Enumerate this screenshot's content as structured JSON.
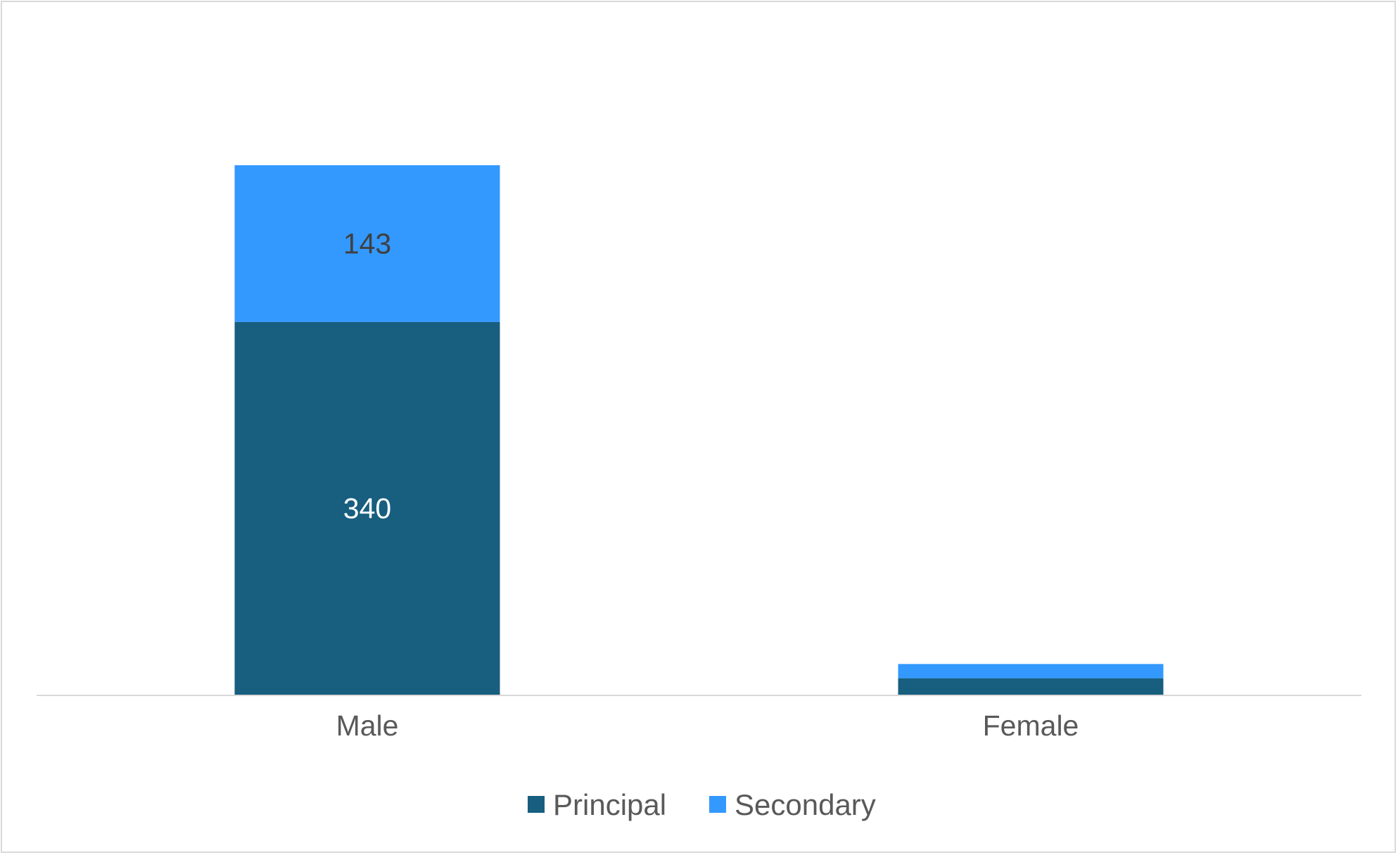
{
  "chart_data": {
    "type": "bar",
    "stacked": true,
    "title": "",
    "xlabel": "",
    "ylabel": "",
    "categories": [
      "Male",
      "Female"
    ],
    "series": [
      {
        "name": "Principal",
        "values": [
          340,
          15
        ],
        "data_labels": [
          "340",
          ""
        ],
        "color": "#175e7f",
        "label_color": "#ffffff"
      },
      {
        "name": "Secondary",
        "values": [
          143,
          13
        ],
        "data_labels": [
          "143",
          ""
        ],
        "color": "#3399ff",
        "label_color": "#404040"
      }
    ],
    "ylim": [
      0,
      483
    ],
    "grid": false,
    "legend": "bottom-center",
    "axis_color": "#d9d9d9"
  }
}
